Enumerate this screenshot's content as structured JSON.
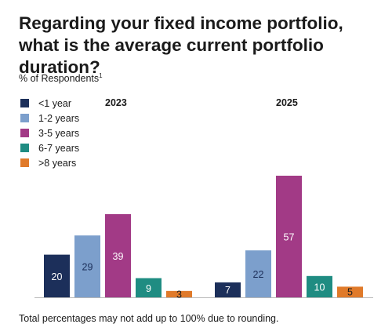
{
  "title": "Regarding your fixed income portfolio, what is the average current portfolio duration?",
  "ylabel": "% of Respondents",
  "ylabel_footnote_mark": "1",
  "footnote": "Total percentages may not add up to 100% due to rounding.",
  "colors": {
    "lt1": "#1c2f5a",
    "y1_2": "#7c9fcc",
    "y3_5": "#a23a86",
    "y6_7": "#1f8c82",
    "gt8": "#e07a2a"
  },
  "chart_data": {
    "type": "bar",
    "categories": [
      "2023",
      "2025"
    ],
    "series": [
      {
        "name": "<1 year",
        "values": [
          20,
          7
        ],
        "color": "#1c2f5a"
      },
      {
        "name": "1-2 years",
        "values": [
          29,
          22
        ],
        "color": "#7c9fcc"
      },
      {
        "name": "3-5 years",
        "values": [
          39,
          57
        ],
        "color": "#a23a86"
      },
      {
        "name": "6-7 years",
        "values": [
          9,
          10
        ],
        "color": "#1f8c82"
      },
      {
        "name": ">8 years",
        "values": [
          3,
          5
        ],
        "color": "#e07a2a"
      }
    ],
    "ylim": [
      0,
      60
    ],
    "grid": false,
    "legend_position": "top-left"
  }
}
